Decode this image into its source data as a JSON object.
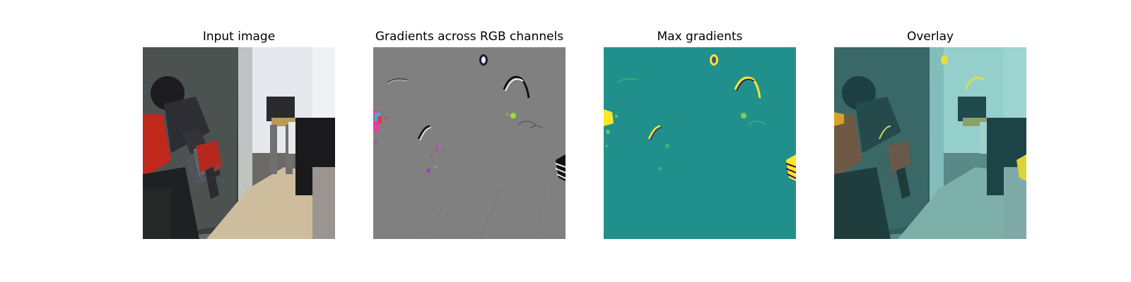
{
  "chart_data": [
    {
      "type": "image",
      "title": "Input image",
      "content": "photo of a robot gripper arm in an office hallway"
    },
    {
      "type": "heatmap",
      "title": "Gradients across RGB channels",
      "background_color": "#808080"
    },
    {
      "type": "heatmap",
      "title": "Max gradients",
      "colormap": "viridis",
      "background_color": "#21908c"
    },
    {
      "type": "image",
      "title": "Overlay",
      "content": "input image overlaid with max gradient map"
    }
  ],
  "colors": {
    "figure_background": "#ffffff",
    "viridis_mid": "#21908c",
    "viridis_high": "#fde725",
    "gradient_gray": "#808080",
    "gripper_red": "#c0281c"
  }
}
